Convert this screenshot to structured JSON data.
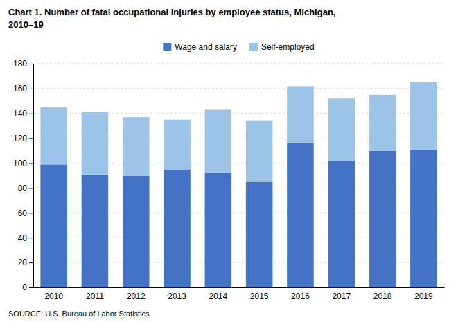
{
  "chart_data": {
    "type": "bar",
    "title": "Chart 1. Number of fatal occupational injuries by employee status, Michigan,\n2010–19",
    "annotations": [
      "SOURCE: U.S. Bureau of Labor Statistics."
    ],
    "categories": [
      "2010",
      "2011",
      "2012",
      "2013",
      "2014",
      "2015",
      "2016",
      "2017",
      "2018",
      "2019"
    ],
    "series": [
      {
        "name": "Wage and salary",
        "color": "#4472C4",
        "values": [
          99,
          91,
          90,
          95,
          92,
          85,
          116,
          102,
          110,
          111
        ]
      },
      {
        "name": "Self-employed",
        "color": "#9DC3E6",
        "values": [
          46,
          50,
          47,
          40,
          51,
          49,
          46,
          50,
          45,
          54
        ]
      }
    ],
    "stacked": true,
    "ylim": [
      0,
      180
    ],
    "yticks": [
      0,
      20,
      40,
      60,
      80,
      100,
      120,
      140,
      160,
      180
    ],
    "grid": true,
    "legend": "top"
  }
}
